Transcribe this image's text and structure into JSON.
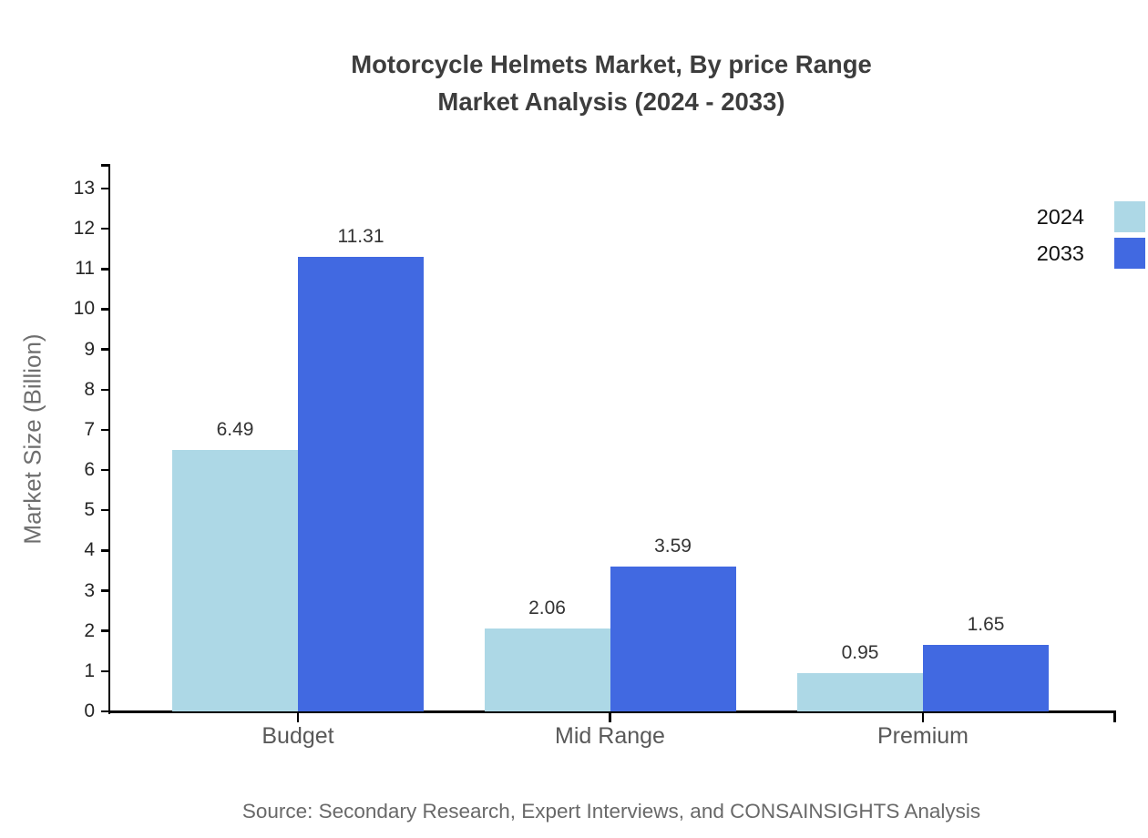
{
  "title": {
    "line1": "Motorcycle Helmets Market, By price Range",
    "line2": "Market Analysis (2024 - 2033)"
  },
  "source": "Source: Secondary Research, Expert Interviews, and CONSAINSIGHTS Analysis",
  "legend": {
    "position": "top-right",
    "items": [
      {
        "label": "2024",
        "color": "#add8e6"
      },
      {
        "label": "2033",
        "color": "#4169e1"
      }
    ]
  },
  "chart_data": {
    "type": "bar",
    "categories": [
      "Budget",
      "Mid Range",
      "Premium"
    ],
    "series": [
      {
        "name": "2024",
        "color": "#add8e6",
        "values": [
          6.49,
          2.06,
          0.95
        ]
      },
      {
        "name": "2033",
        "color": "#4169e1",
        "values": [
          11.31,
          3.59,
          1.65
        ]
      }
    ],
    "value_labels": [
      "6.49",
      "11.31",
      "2.06",
      "3.59",
      "0.95",
      "1.65"
    ],
    "title": "Motorcycle Helmets Market, By price Range Market Analysis (2024 - 2033)",
    "xlabel": "",
    "ylabel": "Market Size (Billion)",
    "ylim": [
      0,
      13
    ],
    "yticks": [
      0,
      1,
      2,
      3,
      4,
      5,
      6,
      7,
      8,
      9,
      10,
      11,
      12,
      13
    ],
    "grid": false,
    "axis_color": "#000000",
    "tick_label_color": "#262626",
    "category_label_color": "#595959",
    "value_label_color": "#333333"
  }
}
